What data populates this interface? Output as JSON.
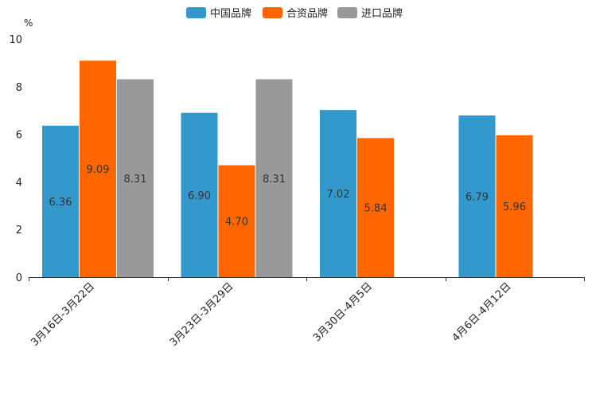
{
  "chart_data": {
    "type": "bar",
    "title": "",
    "xlabel": "",
    "ylabel": "%",
    "ylim": [
      0,
      10
    ],
    "yticks": [
      0,
      2,
      4,
      6,
      8,
      10
    ],
    "grid": false,
    "legend_position": "top-center",
    "categories": [
      "3月16日-3月22日",
      "3月23日-3月29日",
      "3月30日-4月5日",
      "4月6日-4月12日"
    ],
    "series": [
      {
        "name": "中国品牌",
        "color": "#3399cc",
        "values": [
          6.36,
          6.9,
          7.02,
          6.79
        ],
        "labels": [
          "6.36",
          "6.90",
          "7.02",
          "6.79"
        ]
      },
      {
        "name": "合资品牌",
        "color": "#ff6600",
        "values": [
          9.09,
          4.7,
          5.84,
          5.96
        ],
        "labels": [
          "9.09",
          "4.70",
          "5.84",
          "5.96"
        ]
      },
      {
        "name": "进口品牌",
        "color": "#999999",
        "values": [
          8.31,
          8.31,
          null,
          null
        ],
        "labels": [
          "8.31",
          "8.31",
          null,
          null
        ]
      }
    ]
  }
}
